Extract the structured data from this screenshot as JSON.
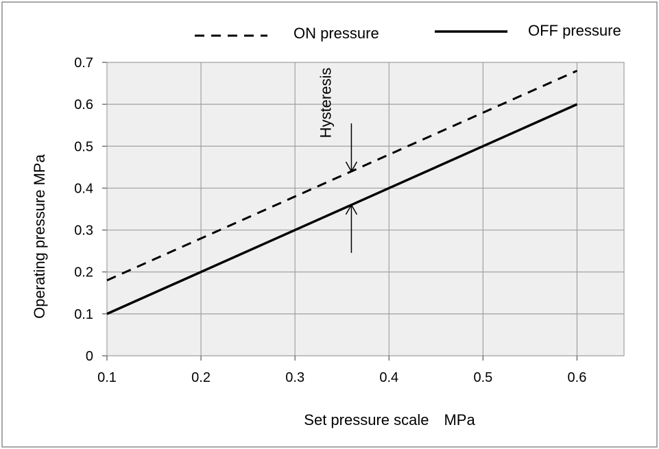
{
  "chart_data": {
    "type": "line",
    "xlabel": "Set pressure scale　MPa",
    "ylabel": "Operating  pressure MPa",
    "xlim": [
      0.1,
      0.65
    ],
    "ylim": [
      0,
      0.7
    ],
    "x_ticks": [
      "0.1",
      "0.2",
      "0.3",
      "0.4",
      "0.5",
      "0.6"
    ],
    "y_ticks": [
      "0",
      "0.1",
      "0.2",
      "0.3",
      "0.4",
      "0.5",
      "0.6",
      "0.7"
    ],
    "grid": true,
    "legend_position": "top",
    "series": [
      {
        "name": "ON pressure",
        "style": "dashed",
        "color": "#000000",
        "x": [
          0.1,
          0.6
        ],
        "y": [
          0.18,
          0.68
        ]
      },
      {
        "name": "OFF pressure",
        "style": "solid",
        "color": "#000000",
        "x": [
          0.1,
          0.6
        ],
        "y": [
          0.1,
          0.6
        ]
      }
    ],
    "annotations": [
      {
        "text": "Hysteresis",
        "x": 0.36,
        "y_on": 0.44,
        "y_off": 0.36
      }
    ]
  }
}
